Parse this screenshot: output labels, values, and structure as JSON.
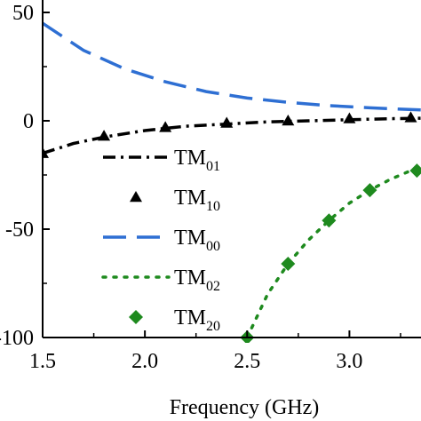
{
  "chart_data": {
    "type": "line",
    "title": "",
    "xlabel": "Frequency (GHz)",
    "ylabel": "",
    "xlim": [
      1.5,
      3.35
    ],
    "ylim": [
      -100,
      50
    ],
    "xticks": [
      1.5,
      2.0,
      2.5,
      3.0
    ],
    "xtick_labels": [
      "1.5",
      "2.0",
      "2.5",
      "3.0"
    ],
    "yticks": [
      50,
      0,
      -50,
      -100
    ],
    "ytick_labels": [
      "50",
      "0",
      "-50",
      "-100"
    ],
    "grid": false,
    "legend_position": "center-left",
    "series": [
      {
        "name": "TM01",
        "label_main": "TM",
        "label_sub": "01",
        "style": "dashdot",
        "marker": "none",
        "color": "#000000",
        "x": [
          1.5,
          1.65,
          1.8,
          2.0,
          2.2,
          2.4,
          2.6,
          2.8,
          3.0,
          3.2,
          3.35
        ],
        "y": [
          -15,
          -10.5,
          -7.5,
          -4.5,
          -2.5,
          -1.5,
          -0.5,
          0,
          0.5,
          1,
          1.2
        ]
      },
      {
        "name": "TM10",
        "label_main": "TM",
        "label_sub": "10",
        "style": "none",
        "marker": "triangle",
        "color": "#000000",
        "x": [
          1.5,
          1.8,
          2.1,
          2.4,
          2.7,
          3.0,
          3.3
        ],
        "y": [
          -15,
          -7,
          -3,
          -1,
          0,
          1,
          1.5
        ]
      },
      {
        "name": "TM00",
        "label_main": "TM",
        "label_sub": "00",
        "style": "longdash",
        "marker": "none",
        "color": "#2e6fd3",
        "x": [
          1.5,
          1.7,
          1.9,
          2.1,
          2.3,
          2.5,
          2.7,
          2.9,
          3.1,
          3.35
        ],
        "y": [
          45,
          32.5,
          24,
          18,
          13.5,
          10.5,
          8.5,
          7,
          6,
          5
        ]
      },
      {
        "name": "TM02",
        "label_main": "TM",
        "label_sub": "02",
        "style": "dotted",
        "marker": "none",
        "color": "#1e8a1e",
        "x": [
          2.5,
          2.6,
          2.7,
          2.8,
          2.9,
          3.0,
          3.1,
          3.2,
          3.35
        ],
        "y": [
          -100,
          -80,
          -66,
          -55,
          -46,
          -38,
          -32,
          -27,
          -21
        ]
      },
      {
        "name": "TM20",
        "label_main": "TM",
        "label_sub": "20",
        "style": "none",
        "marker": "diamond",
        "color": "#1e8a1e",
        "x": [
          2.5,
          2.7,
          2.9,
          3.1,
          3.33
        ],
        "y": [
          -100,
          -66,
          -46,
          -32,
          -23
        ]
      }
    ]
  }
}
